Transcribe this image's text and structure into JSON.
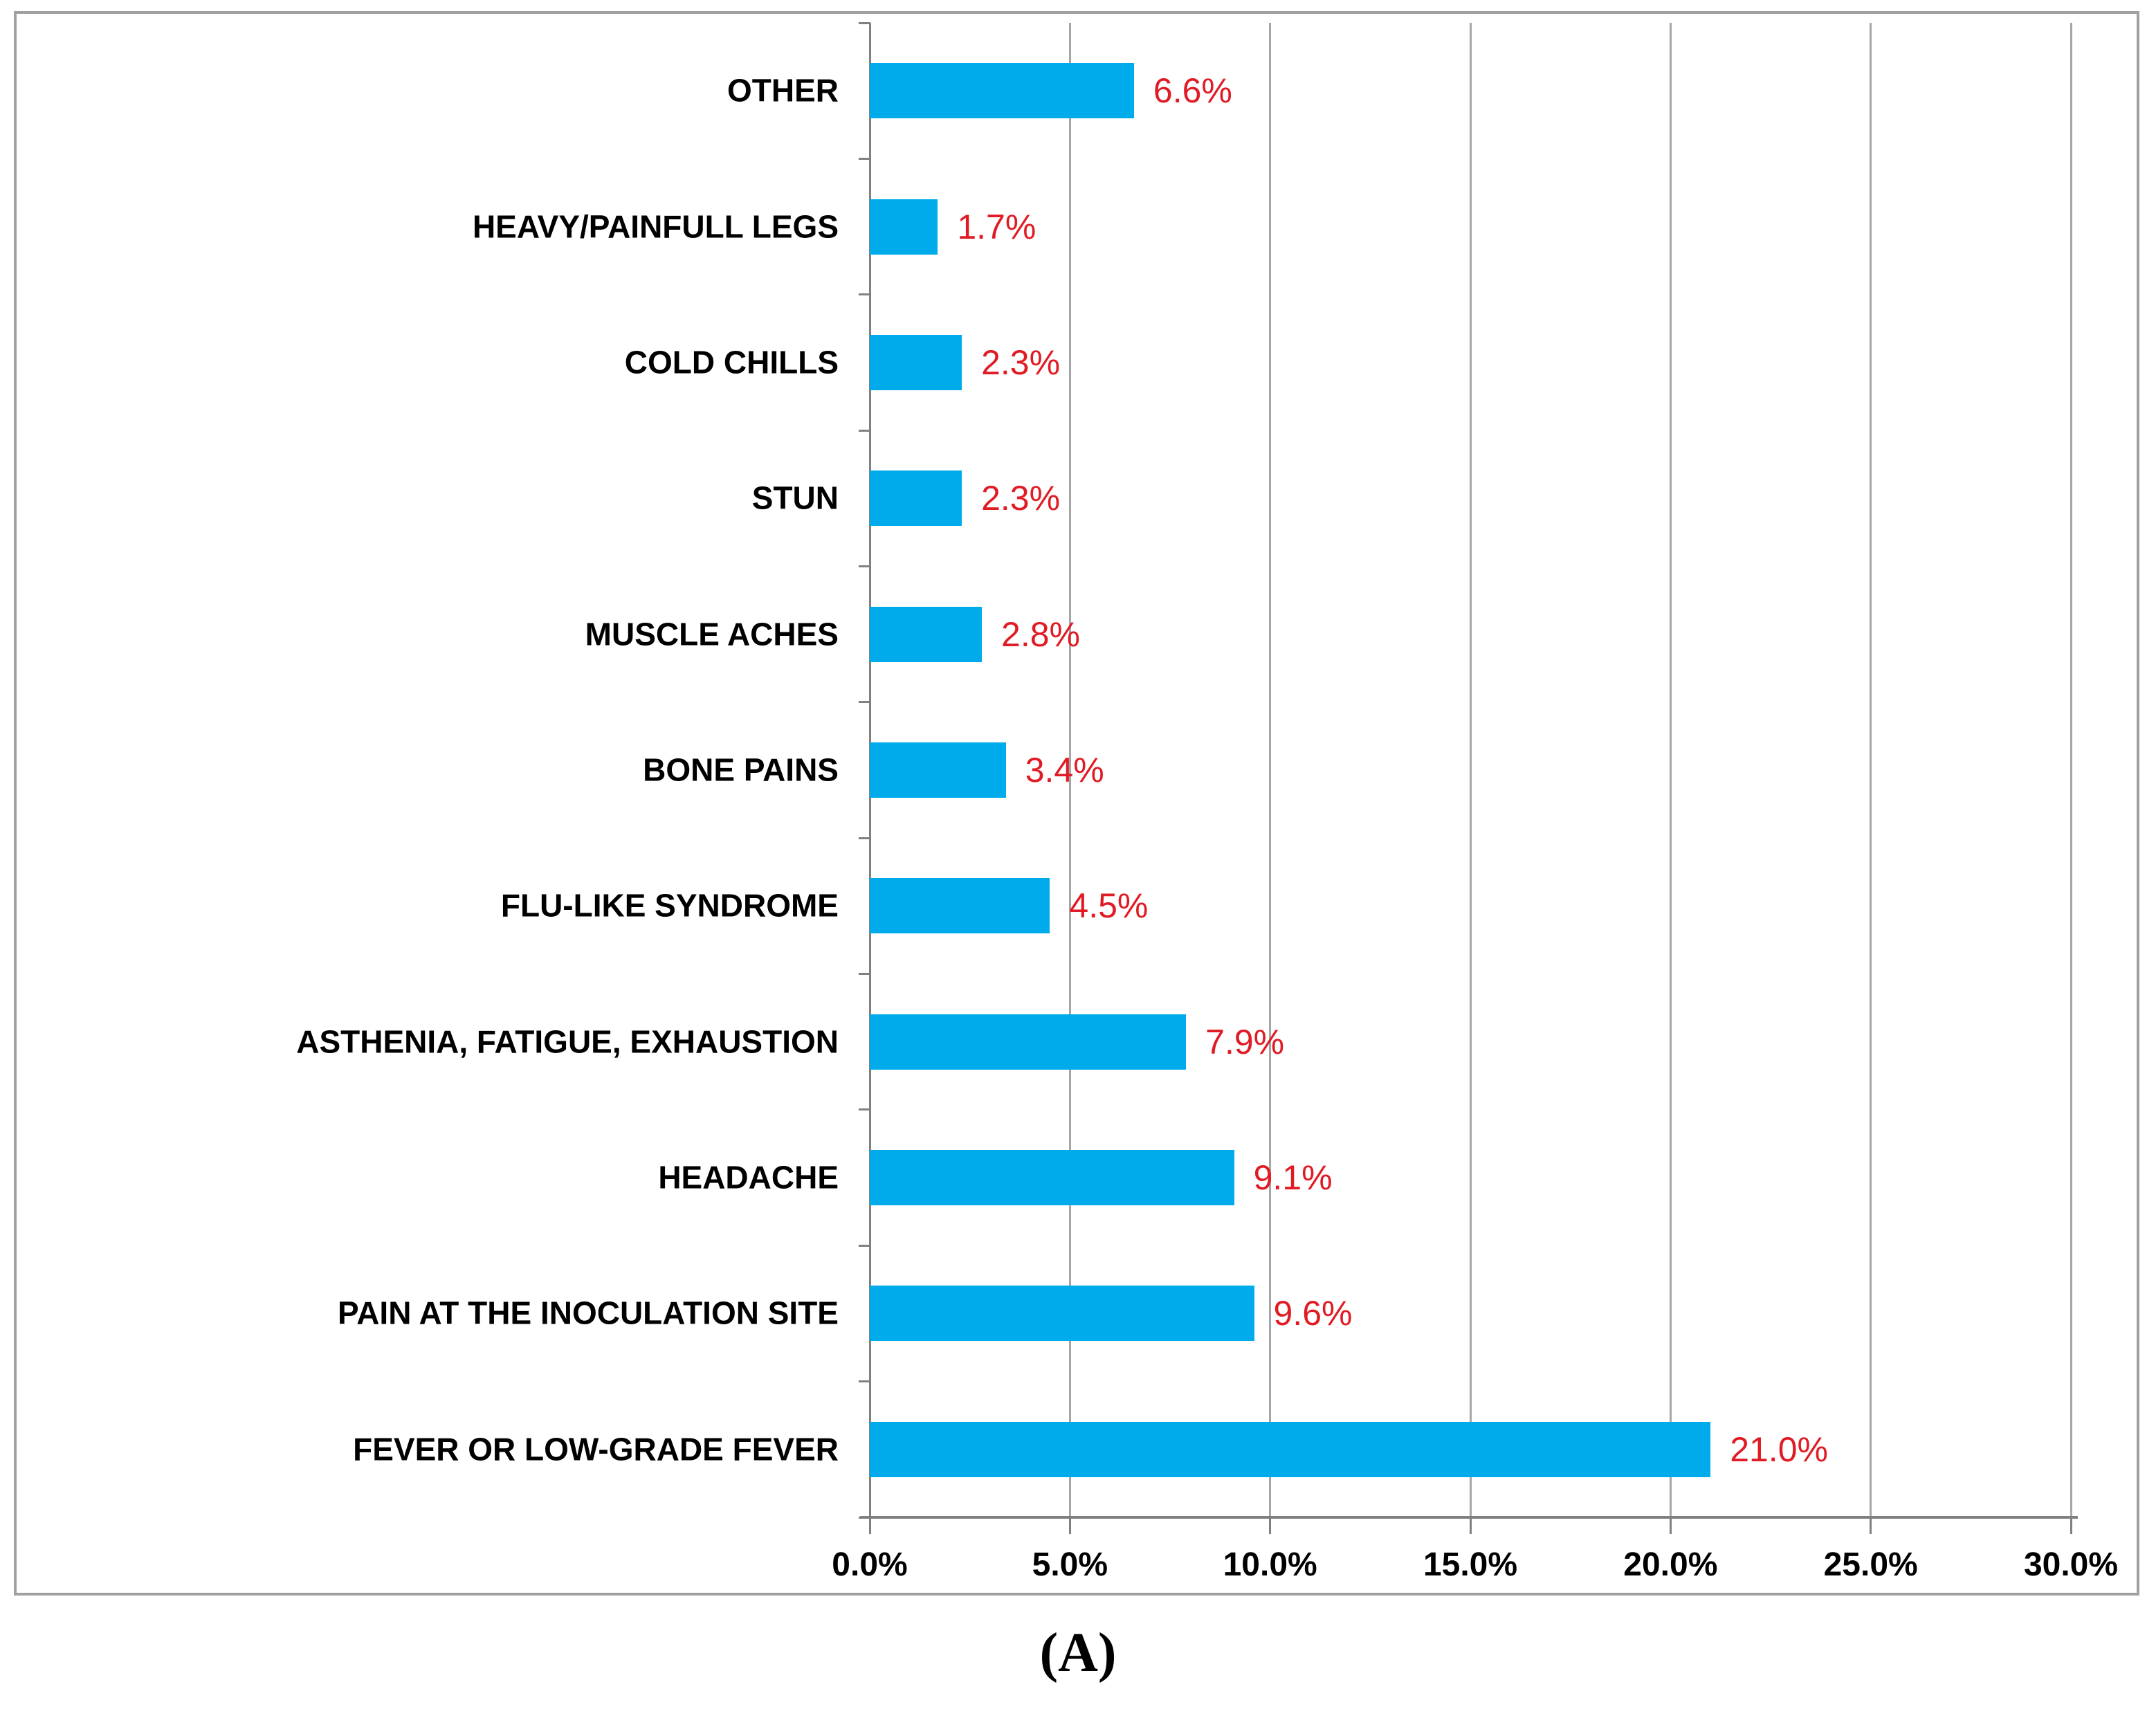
{
  "caption": "(A)",
  "chart_data": {
    "type": "bar",
    "orientation": "horizontal",
    "title": "",
    "categories": [
      "OTHER",
      "HEAVY/PAINFULL LEGS",
      "COLD CHILLS",
      "STUN",
      "MUSCLE ACHES",
      "BONE PAINS",
      "FLU-LIKE SYNDROME",
      "ASTHENIA, FATIGUE, EXHAUSTION",
      "HEADACHE",
      "PAIN AT THE INOCULATION SITE",
      "FEVER OR LOW-GRADE FEVER"
    ],
    "values": [
      6.6,
      1.7,
      2.3,
      2.3,
      2.8,
      3.4,
      4.5,
      7.9,
      9.1,
      9.6,
      21.0
    ],
    "value_labels": [
      "6.6%",
      "1.7%",
      "2.3%",
      "2.3%",
      "2.8%",
      "3.4%",
      "4.5%",
      "7.9%",
      "9.1%",
      "9.6%",
      "21.0%"
    ],
    "x_axis": {
      "tick_labels": [
        "0.0%",
        "5.0%",
        "10.0%",
        "15.0%",
        "20.0%",
        "25.0%",
        "30.0%"
      ],
      "min": 0,
      "max": 30,
      "step": 5
    },
    "grid": true,
    "legend": "none",
    "colors": {
      "bar": "#00abec",
      "value_label": "#e01b24",
      "category_label": "#000000",
      "tick_label": "#000000",
      "gridline": "#a6a6a6",
      "axis_line": "#808080",
      "frame_border": "#a0a0a0"
    }
  }
}
